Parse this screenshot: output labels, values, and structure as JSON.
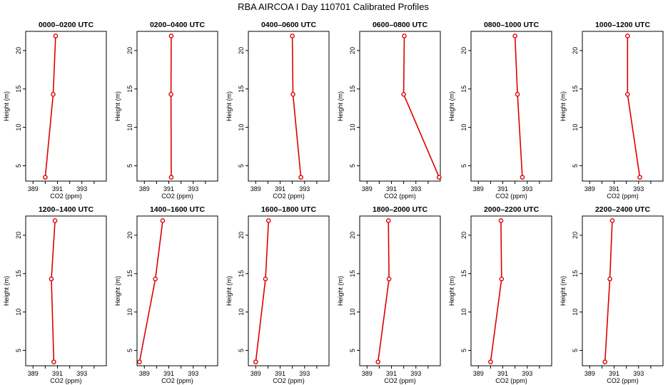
{
  "figure_title": "RBA AIRCOA I  Day 110701  Calibrated Profiles",
  "colors": {
    "series": "#dd0000",
    "axis": "#000000",
    "background": "#ffffff"
  },
  "chart_data": [
    {
      "type": "line",
      "title": "0000–0200 UTC",
      "xlabel": "CO2 (ppm)",
      "ylabel": "Height (m)",
      "xlim": [
        388.4,
        395.0
      ],
      "ylim": [
        3.0,
        22.5
      ],
      "xticks": [
        389,
        390,
        391,
        392,
        393,
        394
      ],
      "xtick_labels": [
        "389",
        "",
        "391",
        "",
        "393",
        ""
      ],
      "yticks": [
        5,
        10,
        15,
        20
      ],
      "ytick_labels": [
        "5",
        "10",
        "15",
        "20"
      ],
      "series": [
        {
          "name": "CO2",
          "x": [
            390.0,
            390.65,
            390.85
          ],
          "y": [
            3.5,
            14.3,
            21.9
          ]
        }
      ]
    },
    {
      "type": "line",
      "title": "0200–0400 UTC",
      "xlabel": "CO2 (ppm)",
      "ylabel": "Height (m)",
      "xlim": [
        388.4,
        395.0
      ],
      "ylim": [
        3.0,
        22.5
      ],
      "xticks": [
        389,
        390,
        391,
        392,
        393,
        394
      ],
      "xtick_labels": [
        "389",
        "",
        "391",
        "",
        "393",
        ""
      ],
      "yticks": [
        5,
        10,
        15,
        20
      ],
      "ytick_labels": [
        "5",
        "10",
        "15",
        "20"
      ],
      "series": [
        {
          "name": "CO2",
          "x": [
            391.2,
            391.18,
            391.2
          ],
          "y": [
            3.5,
            14.3,
            21.9
          ]
        }
      ]
    },
    {
      "type": "line",
      "title": "0400–0600 UTC",
      "xlabel": "CO2 (ppm)",
      "ylabel": "Height (m)",
      "xlim": [
        388.4,
        395.0
      ],
      "ylim": [
        3.0,
        22.5
      ],
      "xticks": [
        389,
        390,
        391,
        392,
        393,
        394
      ],
      "xtick_labels": [
        "389",
        "",
        "391",
        "",
        "393",
        ""
      ],
      "yticks": [
        5,
        10,
        15,
        20
      ],
      "ytick_labels": [
        "5",
        "10",
        "15",
        "20"
      ],
      "series": [
        {
          "name": "CO2",
          "x": [
            392.7,
            392.05,
            392.0
          ],
          "y": [
            3.5,
            14.3,
            21.9
          ]
        }
      ]
    },
    {
      "type": "line",
      "title": "0600–0800 UTC",
      "xlabel": "CO2 (ppm)",
      "ylabel": "Height (m)",
      "xlim": [
        388.4,
        395.0
      ],
      "ylim": [
        3.0,
        22.5
      ],
      "xticks": [
        389,
        390,
        391,
        392,
        393,
        394
      ],
      "xtick_labels": [
        "389",
        "",
        "391",
        "",
        "393",
        ""
      ],
      "yticks": [
        5,
        10,
        15,
        20
      ],
      "ytick_labels": [
        "5",
        "10",
        "15",
        "20"
      ],
      "series": [
        {
          "name": "CO2",
          "x": [
            394.9,
            392.0,
            392.05
          ],
          "y": [
            3.5,
            14.3,
            21.9
          ]
        }
      ]
    },
    {
      "type": "line",
      "title": "0800–1000 UTC",
      "xlabel": "CO2 (ppm)",
      "ylabel": "Height (m)",
      "xlim": [
        388.4,
        395.0
      ],
      "ylim": [
        3.0,
        22.5
      ],
      "xticks": [
        389,
        390,
        391,
        392,
        393,
        394
      ],
      "xtick_labels": [
        "389",
        "",
        "391",
        "",
        "393",
        ""
      ],
      "yticks": [
        5,
        10,
        15,
        20
      ],
      "ytick_labels": [
        "5",
        "10",
        "15",
        "20"
      ],
      "series": [
        {
          "name": "CO2",
          "x": [
            392.6,
            392.2,
            392.0
          ],
          "y": [
            3.5,
            14.3,
            21.9
          ]
        }
      ]
    },
    {
      "type": "line",
      "title": "1000–1200 UTC",
      "xlabel": "CO2 (ppm)",
      "ylabel": "Height (m)",
      "xlim": [
        388.4,
        395.0
      ],
      "ylim": [
        3.0,
        22.5
      ],
      "xticks": [
        389,
        390,
        391,
        392,
        393,
        394
      ],
      "xtick_labels": [
        "389",
        "",
        "391",
        "",
        "393",
        ""
      ],
      "yticks": [
        5,
        10,
        15,
        20
      ],
      "ytick_labels": [
        "5",
        "10",
        "15",
        "20"
      ],
      "series": [
        {
          "name": "CO2",
          "x": [
            393.1,
            392.1,
            392.1
          ],
          "y": [
            3.5,
            14.3,
            21.9
          ]
        }
      ]
    },
    {
      "type": "line",
      "title": "1200–1400 UTC",
      "xlabel": "CO2 (ppm)",
      "ylabel": "Height (m)",
      "xlim": [
        388.4,
        395.0
      ],
      "ylim": [
        3.0,
        22.5
      ],
      "xticks": [
        389,
        390,
        391,
        392,
        393,
        394
      ],
      "xtick_labels": [
        "389",
        "",
        "391",
        "",
        "393",
        ""
      ],
      "yticks": [
        5,
        10,
        15,
        20
      ],
      "ytick_labels": [
        "5",
        "10",
        "15",
        "20"
      ],
      "series": [
        {
          "name": "CO2",
          "x": [
            390.7,
            390.5,
            390.8
          ],
          "y": [
            3.5,
            14.3,
            21.9
          ]
        }
      ]
    },
    {
      "type": "line",
      "title": "1400–1600 UTC",
      "xlabel": "CO2 (ppm)",
      "ylabel": "Height (m)",
      "xlim": [
        388.4,
        395.0
      ],
      "ylim": [
        3.0,
        22.5
      ],
      "xticks": [
        389,
        390,
        391,
        392,
        393,
        394
      ],
      "xtick_labels": [
        "389",
        "",
        "391",
        "",
        "393",
        ""
      ],
      "yticks": [
        5,
        10,
        15,
        20
      ],
      "ytick_labels": [
        "5",
        "10",
        "15",
        "20"
      ],
      "series": [
        {
          "name": "CO2",
          "x": [
            388.6,
            389.9,
            390.5
          ],
          "y": [
            3.5,
            14.3,
            21.9
          ]
        }
      ]
    },
    {
      "type": "line",
      "title": "1600–1800 UTC",
      "xlabel": "CO2 (ppm)",
      "ylabel": "Height (m)",
      "xlim": [
        388.4,
        395.0
      ],
      "ylim": [
        3.0,
        22.5
      ],
      "xticks": [
        389,
        390,
        391,
        392,
        393,
        394
      ],
      "xtick_labels": [
        "389",
        "",
        "391",
        "",
        "393",
        ""
      ],
      "yticks": [
        5,
        10,
        15,
        20
      ],
      "ytick_labels": [
        "5",
        "10",
        "15",
        "20"
      ],
      "series": [
        {
          "name": "CO2",
          "x": [
            389.0,
            389.8,
            390.05
          ],
          "y": [
            3.5,
            14.3,
            21.9
          ]
        }
      ]
    },
    {
      "type": "line",
      "title": "1800–2000 UTC",
      "xlabel": "CO2 (ppm)",
      "ylabel": "Height (m)",
      "xlim": [
        388.4,
        395.0
      ],
      "ylim": [
        3.0,
        22.5
      ],
      "xticks": [
        389,
        390,
        391,
        392,
        393,
        394
      ],
      "xtick_labels": [
        "389",
        "",
        "391",
        "",
        "393",
        ""
      ],
      "yticks": [
        5,
        10,
        15,
        20
      ],
      "ytick_labels": [
        "5",
        "10",
        "15",
        "20"
      ],
      "series": [
        {
          "name": "CO2",
          "x": [
            389.9,
            390.8,
            390.75
          ],
          "y": [
            3.5,
            14.3,
            21.9
          ]
        }
      ]
    },
    {
      "type": "line",
      "title": "2000–2200 UTC",
      "xlabel": "CO2 (ppm)",
      "ylabel": "Height (m)",
      "xlim": [
        388.4,
        395.0
      ],
      "ylim": [
        3.0,
        22.5
      ],
      "xticks": [
        389,
        390,
        391,
        392,
        393,
        394
      ],
      "xtick_labels": [
        "389",
        "",
        "391",
        "",
        "393",
        ""
      ],
      "yticks": [
        5,
        10,
        15,
        20
      ],
      "ytick_labels": [
        "5",
        "10",
        "15",
        "20"
      ],
      "series": [
        {
          "name": "CO2",
          "x": [
            390.0,
            390.9,
            390.85
          ],
          "y": [
            3.5,
            14.3,
            21.9
          ]
        }
      ]
    },
    {
      "type": "line",
      "title": "2200–2400 UTC",
      "xlabel": "CO2 (ppm)",
      "ylabel": "Height (m)",
      "xlim": [
        388.4,
        395.0
      ],
      "ylim": [
        3.0,
        22.5
      ],
      "xticks": [
        389,
        390,
        391,
        392,
        393,
        394
      ],
      "xtick_labels": [
        "389",
        "",
        "391",
        "",
        "393",
        ""
      ],
      "yticks": [
        5,
        10,
        15,
        20
      ],
      "ytick_labels": [
        "5",
        "10",
        "15",
        "20"
      ],
      "series": [
        {
          "name": "CO2",
          "x": [
            390.25,
            390.65,
            390.85
          ],
          "y": [
            3.5,
            14.3,
            21.9
          ]
        }
      ]
    }
  ]
}
